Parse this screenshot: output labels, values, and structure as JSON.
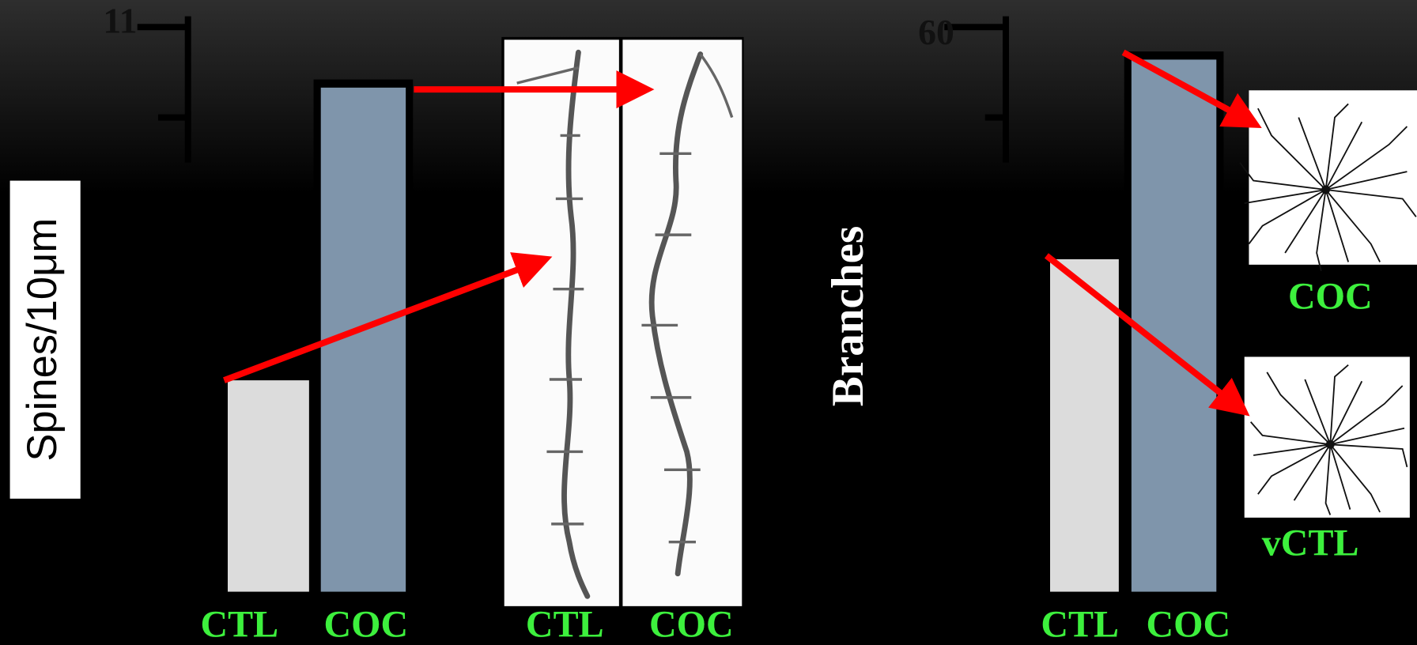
{
  "chart_data": [
    {
      "type": "bar",
      "ylabel": "Spines/10μm",
      "categories": [
        "CTL",
        "COC"
      ],
      "values": [
        7.09,
        10.33
      ],
      "colors": [
        "#dcdcdc",
        "#7f95ab"
      ],
      "ylim": [
        4.75,
        11
      ],
      "yticks": [
        11,
        {
          "value": 10,
          "label": null
        }
      ],
      "image_labels": [
        "CTL",
        "COC"
      ]
    },
    {
      "type": "bar",
      "ylabel": "Branches",
      "categories": [
        "CTL",
        "COC"
      ],
      "values": [
        47.15,
        58.2
      ],
      "colors": [
        "#dcdcdc",
        "#7f95ab"
      ],
      "ylim": [
        28.75,
        60
      ],
      "yticks": [
        60,
        {
          "value": 55,
          "label": null
        }
      ],
      "image_labels": [
        "COC",
        "vCTL"
      ]
    }
  ]
}
